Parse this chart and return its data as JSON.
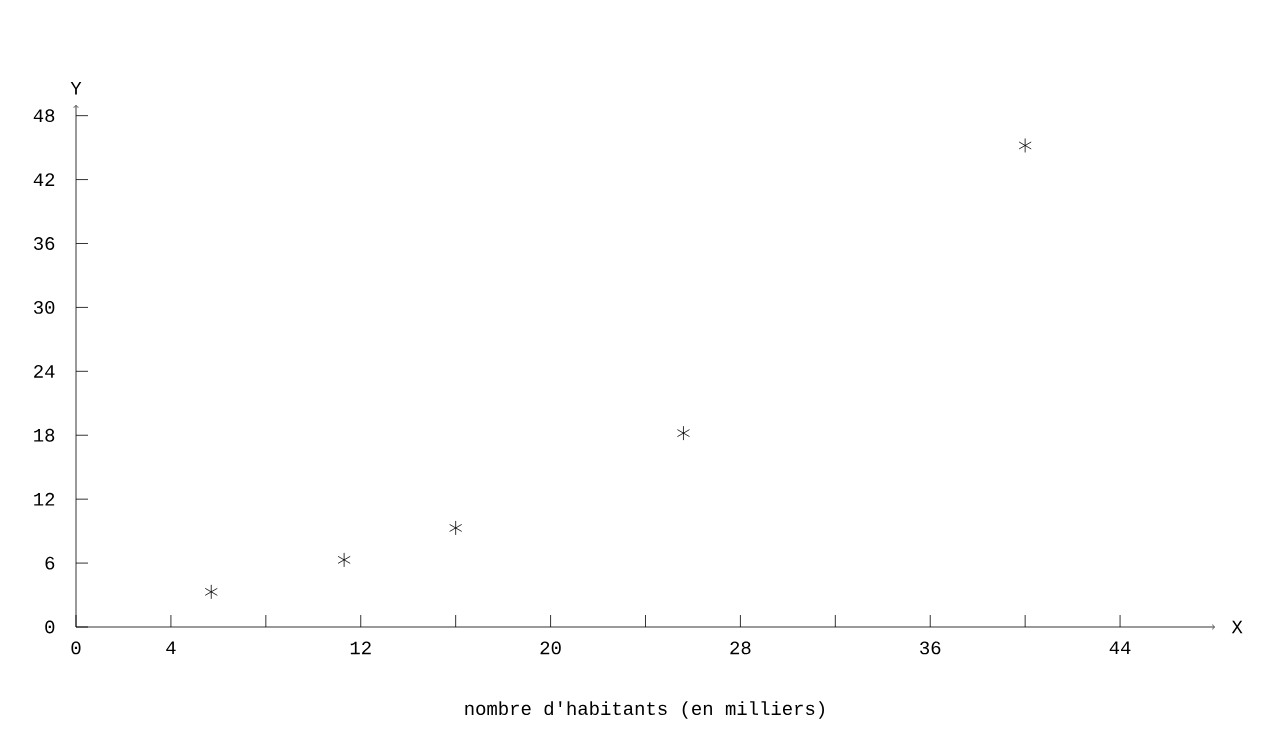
{
  "chart_data": {
    "type": "scatter",
    "xlabel": "nombre d'habitants (en milliers)",
    "annotations": [
      "X",
      "Y"
    ],
    "x": [
      5.7,
      11.3,
      16.0,
      25.6,
      40.0
    ],
    "values": [
      3.3,
      6.3,
      9.3,
      18.2,
      45.2
    ],
    "color": "#000000",
    "marker": "cross",
    "xlim": [
      0,
      48
    ],
    "ylim": [
      0,
      49
    ],
    "xticks": [
      0,
      4,
      {
        "value": 8,
        "label": null
      },
      12,
      {
        "value": 16,
        "label": null
      },
      20,
      {
        "value": 24,
        "label": null
      },
      28,
      {
        "value": 32,
        "label": null
      },
      36,
      {
        "value": 40,
        "label": null
      },
      44
    ],
    "yticks": [
      0,
      6,
      12,
      18,
      24,
      30,
      36,
      42,
      48
    ],
    "grid": false
  }
}
